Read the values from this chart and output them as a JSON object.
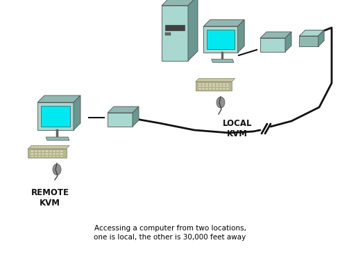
{
  "caption_line1": "Accessing a computer from two locations,",
  "caption_line2": "one is local, the other is 30,000 feet away",
  "local_label": "LOCAL\nKVM",
  "remote_label": "REMOTE\nKVM",
  "bg_color": "#ffffff",
  "cable_color": "#111111",
  "lc": "#a8d8d0",
  "mc": "#90b8b0",
  "dc": "#6a9890",
  "sc": "#00e8f0",
  "kc": "#c8c8a0"
}
